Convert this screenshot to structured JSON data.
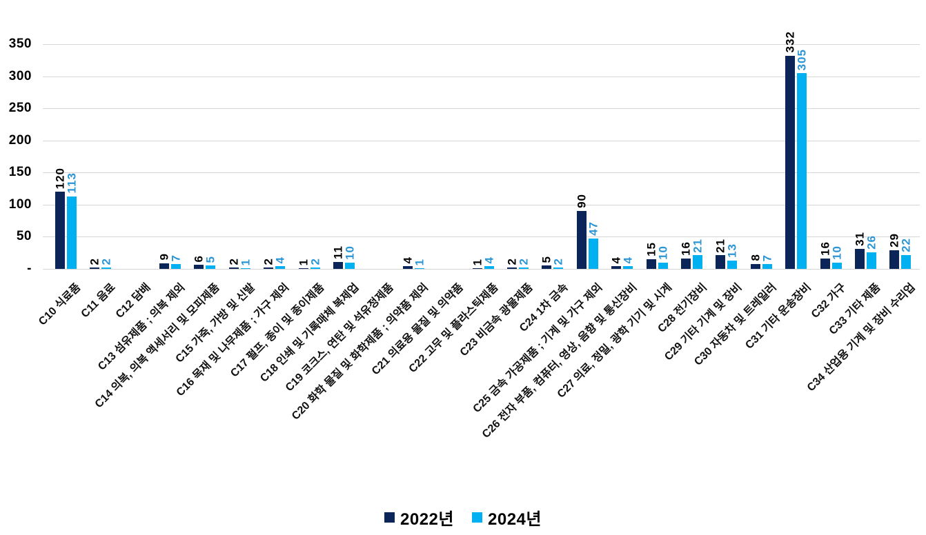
{
  "chart_data": {
    "type": "bar",
    "title": "",
    "xlabel": "",
    "ylabel": "",
    "ylim": [
      0,
      350
    ],
    "ytick_values": [
      0,
      50,
      100,
      150,
      200,
      250,
      300,
      350
    ],
    "ytick_labels": [
      "-",
      "50",
      "100",
      "150",
      "200",
      "250",
      "300",
      "350"
    ],
    "grid": true,
    "legend_position": "bottom",
    "value_labels_rotated": "vertical",
    "category_labels_rotated": "-45deg",
    "gridline_color": "#d6d6d6",
    "categories": [
      "C10 식료품",
      "C11 음료",
      "C12 담배",
      "C13 섬유제품 ; 의복 제외",
      "C14 의복, 의복 액세서리 및 모피제품",
      "C15 가죽, 가방 및 신발",
      "C16 목재 및 나무제품 ; 가구 제외",
      "C17 펄프, 종이 및 종이제품",
      "C18 인쇄 및 기록매체 복제업",
      "C19 코크스, 연탄 및 석유정제품",
      "C20 화학 물질 및 화학제품 ; 의약품 제외",
      "C21 의료용 물질 및 의약품",
      "C22 고무 및 플라스틱제품",
      "C23 비금속 광물제품",
      "C24 1차 금속",
      "C25 금속 가공제품 ; 기계 및 가구 제외",
      "C26 전자 부품, 컴퓨터, 영상, 음향 및 통신장비",
      "C27 의료, 정밀, 광학 기기 및 시계",
      "C28 전기장비",
      "C29 기타 기계 및 장비",
      "C30 자동차 및 트레일러",
      "C31 기타 운송장비",
      "C32 가구",
      "C33 기타 제품",
      "C34 산업용 기계 및 장비 수리업"
    ],
    "series": [
      {
        "name": "2022년",
        "color": "#0B2559",
        "label_color": "#000000",
        "values": [
          120,
          2,
          null,
          9,
          6,
          2,
          2,
          1,
          11,
          null,
          4,
          null,
          1,
          2,
          5,
          90,
          4,
          15,
          16,
          21,
          8,
          332,
          16,
          31,
          29
        ]
      },
      {
        "name": "2024년",
        "color": "#00B0F0",
        "label_color": "#2C95D4",
        "values": [
          113,
          2,
          null,
          7,
          5,
          1,
          4,
          2,
          10,
          null,
          1,
          null,
          4,
          2,
          2,
          47,
          4,
          10,
          21,
          13,
          7,
          305,
          10,
          26,
          22
        ]
      }
    ]
  }
}
